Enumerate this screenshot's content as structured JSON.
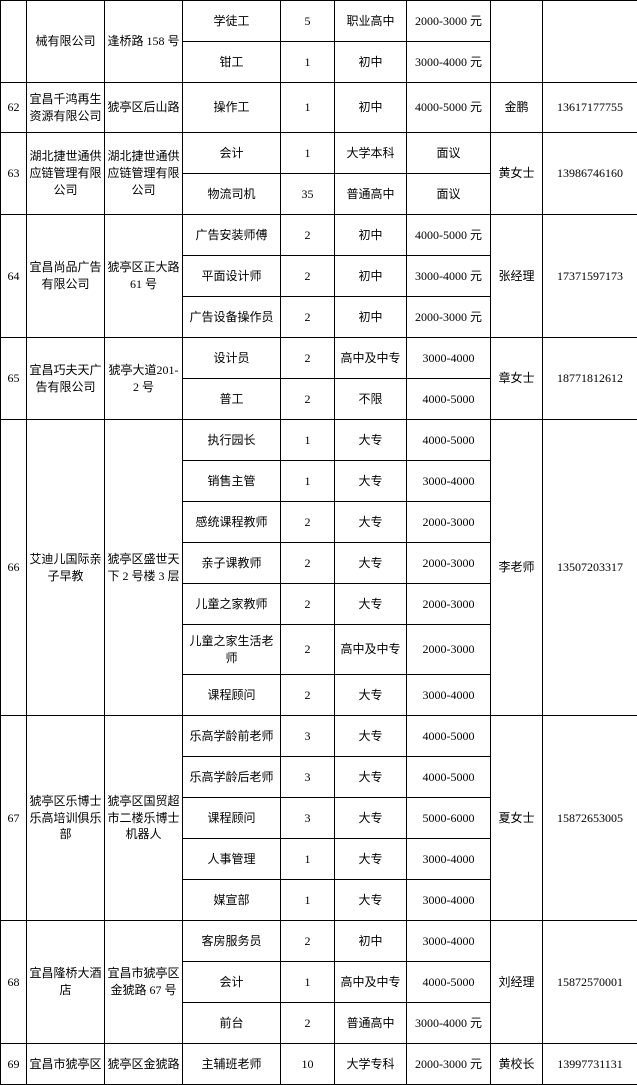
{
  "table": {
    "background_color": "#ffffff",
    "border_color": "#000000",
    "text_color": "#000000",
    "font_size": 12,
    "cells": [
      {
        "r": 0,
        "c": 0,
        "rs": 2,
        "cs": 1,
        "t": "",
        "cls": "h1"
      },
      {
        "r": 0,
        "c": 1,
        "rs": 2,
        "cs": 1,
        "t": "械有限公司",
        "cls": "h1"
      },
      {
        "r": 0,
        "c": 2,
        "rs": 2,
        "cs": 1,
        "t": "逢桥路 158 号",
        "cls": "h1"
      },
      {
        "r": 0,
        "c": 3,
        "t": "学徒工",
        "cls": "h1"
      },
      {
        "r": 0,
        "c": 4,
        "t": "5",
        "cls": "h1"
      },
      {
        "r": 0,
        "c": 5,
        "t": "职业高中",
        "cls": "h1"
      },
      {
        "r": 0,
        "c": 6,
        "t": "2000-3000 元",
        "cls": "h1"
      },
      {
        "r": 0,
        "c": 7,
        "rs": 2,
        "cs": 1,
        "t": "",
        "cls": "h1"
      },
      {
        "r": 0,
        "c": 8,
        "rs": 2,
        "cs": 1,
        "t": "",
        "cls": "h1"
      },
      {
        "r": 1,
        "c": 3,
        "t": "钳工",
        "cls": "h1"
      },
      {
        "r": 1,
        "c": 4,
        "t": "1",
        "cls": "h1"
      },
      {
        "r": 1,
        "c": 5,
        "t": "初中",
        "cls": "h1"
      },
      {
        "r": 1,
        "c": 6,
        "t": "3000-4000 元",
        "cls": "h1"
      },
      {
        "r": 2,
        "c": 0,
        "t": "62",
        "cls": "h2"
      },
      {
        "r": 2,
        "c": 1,
        "t": "宜昌千鸿再生资源有限公司",
        "cls": "h2"
      },
      {
        "r": 2,
        "c": 2,
        "t": "猇亭区后山路",
        "cls": "h2"
      },
      {
        "r": 2,
        "c": 3,
        "t": "操作工",
        "cls": "h2"
      },
      {
        "r": 2,
        "c": 4,
        "t": "1",
        "cls": "h2"
      },
      {
        "r": 2,
        "c": 5,
        "t": "初中",
        "cls": "h2"
      },
      {
        "r": 2,
        "c": 6,
        "t": "4000-5000 元",
        "cls": "h2"
      },
      {
        "r": 2,
        "c": 7,
        "t": "金鹏",
        "cls": "h2"
      },
      {
        "r": 2,
        "c": 8,
        "t": "13617177755",
        "cls": "h2"
      },
      {
        "r": 3,
        "c": 0,
        "rs": 2,
        "cs": 1,
        "t": "63",
        "cls": "h1"
      },
      {
        "r": 3,
        "c": 1,
        "rs": 2,
        "cs": 1,
        "t": "湖北捷世通供应链管理有限公司",
        "cls": "h1"
      },
      {
        "r": 3,
        "c": 2,
        "rs": 2,
        "cs": 1,
        "t": "湖北捷世通供应链管理有限公司",
        "cls": "h1"
      },
      {
        "r": 3,
        "c": 3,
        "t": "会计",
        "cls": "h1"
      },
      {
        "r": 3,
        "c": 4,
        "t": "1",
        "cls": "h1"
      },
      {
        "r": 3,
        "c": 5,
        "t": "大学本科",
        "cls": "h1"
      },
      {
        "r": 3,
        "c": 6,
        "t": "面议",
        "cls": "h1"
      },
      {
        "r": 3,
        "c": 7,
        "rs": 2,
        "cs": 1,
        "t": "黄女士",
        "cls": "h1"
      },
      {
        "r": 3,
        "c": 8,
        "rs": 2,
        "cs": 1,
        "t": "13986746160",
        "cls": "h1"
      },
      {
        "r": 4,
        "c": 3,
        "t": "物流司机",
        "cls": "h1"
      },
      {
        "r": 4,
        "c": 4,
        "t": "35",
        "cls": "h1"
      },
      {
        "r": 4,
        "c": 5,
        "t": "普通高中",
        "cls": "h1"
      },
      {
        "r": 4,
        "c": 6,
        "t": "面议",
        "cls": "h1"
      },
      {
        "r": 5,
        "c": 0,
        "rs": 3,
        "cs": 1,
        "t": "64",
        "cls": "h1"
      },
      {
        "r": 5,
        "c": 1,
        "rs": 3,
        "cs": 1,
        "t": "宜昌尚品广告有限公司",
        "cls": "h1"
      },
      {
        "r": 5,
        "c": 2,
        "rs": 3,
        "cs": 1,
        "t": "猇亭区正大路61 号",
        "cls": "h1"
      },
      {
        "r": 5,
        "c": 3,
        "t": "广告安装师傅",
        "cls": "h1"
      },
      {
        "r": 5,
        "c": 4,
        "t": "2",
        "cls": "h1"
      },
      {
        "r": 5,
        "c": 5,
        "t": "初中",
        "cls": "h1"
      },
      {
        "r": 5,
        "c": 6,
        "t": "4000-5000 元",
        "cls": "h1"
      },
      {
        "r": 5,
        "c": 7,
        "rs": 3,
        "cs": 1,
        "t": "张经理",
        "cls": "h1"
      },
      {
        "r": 5,
        "c": 8,
        "rs": 3,
        "cs": 1,
        "t": "17371597173",
        "cls": "h1"
      },
      {
        "r": 6,
        "c": 3,
        "t": "平面设计师",
        "cls": "h1"
      },
      {
        "r": 6,
        "c": 4,
        "t": "2",
        "cls": "h1"
      },
      {
        "r": 6,
        "c": 5,
        "t": "初中",
        "cls": "h1"
      },
      {
        "r": 6,
        "c": 6,
        "t": "3000-4000 元",
        "cls": "h1"
      },
      {
        "r": 7,
        "c": 3,
        "t": "广告设备操作员",
        "cls": "h1"
      },
      {
        "r": 7,
        "c": 4,
        "t": "2",
        "cls": "h1"
      },
      {
        "r": 7,
        "c": 5,
        "t": "初中",
        "cls": "h1"
      },
      {
        "r": 7,
        "c": 6,
        "t": "2000-3000 元",
        "cls": "h1"
      },
      {
        "r": 8,
        "c": 0,
        "rs": 2,
        "cs": 1,
        "t": "65",
        "cls": "h1"
      },
      {
        "r": 8,
        "c": 1,
        "rs": 2,
        "cs": 1,
        "t": "宜昌巧夫天广告有限公司",
        "cls": "h1"
      },
      {
        "r": 8,
        "c": 2,
        "rs": 2,
        "cs": 1,
        "t": "猇亭大道201-2 号",
        "cls": "h1"
      },
      {
        "r": 8,
        "c": 3,
        "t": "设计员",
        "cls": "h1"
      },
      {
        "r": 8,
        "c": 4,
        "t": "2",
        "cls": "h1"
      },
      {
        "r": 8,
        "c": 5,
        "t": "高中及中专",
        "cls": "h1"
      },
      {
        "r": 8,
        "c": 6,
        "t": "3000-4000",
        "cls": "h1"
      },
      {
        "r": 8,
        "c": 7,
        "rs": 2,
        "cs": 1,
        "t": "章女士",
        "cls": "h1"
      },
      {
        "r": 8,
        "c": 8,
        "rs": 2,
        "cs": 1,
        "t": "18771812612",
        "cls": "h1"
      },
      {
        "r": 9,
        "c": 3,
        "t": "普工",
        "cls": "h1"
      },
      {
        "r": 9,
        "c": 4,
        "t": "2",
        "cls": "h1"
      },
      {
        "r": 9,
        "c": 5,
        "t": "不限",
        "cls": "h1"
      },
      {
        "r": 9,
        "c": 6,
        "t": "4000-5000",
        "cls": "h1"
      },
      {
        "r": 10,
        "c": 0,
        "rs": 7,
        "cs": 1,
        "t": "66",
        "cls": "h1"
      },
      {
        "r": 10,
        "c": 1,
        "rs": 7,
        "cs": 1,
        "t": "艾迪儿国际亲子早教",
        "cls": "h1"
      },
      {
        "r": 10,
        "c": 2,
        "rs": 7,
        "cs": 1,
        "t": "猇亭区盛世天下 2 号楼 3 层",
        "cls": "h1"
      },
      {
        "r": 10,
        "c": 3,
        "t": "执行园长",
        "cls": "h1"
      },
      {
        "r": 10,
        "c": 4,
        "t": "1",
        "cls": "h1"
      },
      {
        "r": 10,
        "c": 5,
        "t": "大专",
        "cls": "h1"
      },
      {
        "r": 10,
        "c": 6,
        "t": "4000-5000",
        "cls": "h1"
      },
      {
        "r": 10,
        "c": 7,
        "rs": 7,
        "cs": 1,
        "t": "李老师",
        "cls": "h1"
      },
      {
        "r": 10,
        "c": 8,
        "rs": 7,
        "cs": 1,
        "t": "13507203317",
        "cls": "h1"
      },
      {
        "r": 11,
        "c": 3,
        "t": "销售主管",
        "cls": "h1"
      },
      {
        "r": 11,
        "c": 4,
        "t": "1",
        "cls": "h1"
      },
      {
        "r": 11,
        "c": 5,
        "t": "大专",
        "cls": "h1"
      },
      {
        "r": 11,
        "c": 6,
        "t": "3000-4000",
        "cls": "h1"
      },
      {
        "r": 12,
        "c": 3,
        "t": "感统课程教师",
        "cls": "h1"
      },
      {
        "r": 12,
        "c": 4,
        "t": "2",
        "cls": "h1"
      },
      {
        "r": 12,
        "c": 5,
        "t": "大专",
        "cls": "h1"
      },
      {
        "r": 12,
        "c": 6,
        "t": "2000-3000",
        "cls": "h1"
      },
      {
        "r": 13,
        "c": 3,
        "t": "亲子课教师",
        "cls": "h1"
      },
      {
        "r": 13,
        "c": 4,
        "t": "2",
        "cls": "h1"
      },
      {
        "r": 13,
        "c": 5,
        "t": "大专",
        "cls": "h1"
      },
      {
        "r": 13,
        "c": 6,
        "t": "2000-3000",
        "cls": "h1"
      },
      {
        "r": 14,
        "c": 3,
        "t": "儿童之家教师",
        "cls": "h1"
      },
      {
        "r": 14,
        "c": 4,
        "t": "2",
        "cls": "h1"
      },
      {
        "r": 14,
        "c": 5,
        "t": "大专",
        "cls": "h1"
      },
      {
        "r": 14,
        "c": 6,
        "t": "2000-3000",
        "cls": "h1"
      },
      {
        "r": 15,
        "c": 3,
        "t": "儿童之家生活老师",
        "cls": "h2"
      },
      {
        "r": 15,
        "c": 4,
        "t": "2",
        "cls": "h2"
      },
      {
        "r": 15,
        "c": 5,
        "t": "高中及中专",
        "cls": "h2"
      },
      {
        "r": 15,
        "c": 6,
        "t": "2000-3000",
        "cls": "h2"
      },
      {
        "r": 16,
        "c": 3,
        "t": "课程顾问",
        "cls": "h1"
      },
      {
        "r": 16,
        "c": 4,
        "t": "2",
        "cls": "h1"
      },
      {
        "r": 16,
        "c": 5,
        "t": "大专",
        "cls": "h1"
      },
      {
        "r": 16,
        "c": 6,
        "t": "3000-4000",
        "cls": "h1"
      },
      {
        "r": 17,
        "c": 0,
        "rs": 5,
        "cs": 1,
        "t": "67",
        "cls": "h1"
      },
      {
        "r": 17,
        "c": 1,
        "rs": 5,
        "cs": 1,
        "t": "猇亭区乐博士乐高培训俱乐部",
        "cls": "h1"
      },
      {
        "r": 17,
        "c": 2,
        "rs": 5,
        "cs": 1,
        "t": "猇亭区国贸超市二楼乐博士机器人",
        "cls": "h1"
      },
      {
        "r": 17,
        "c": 3,
        "t": "乐高学龄前老师",
        "cls": "h1"
      },
      {
        "r": 17,
        "c": 4,
        "t": "3",
        "cls": "h1"
      },
      {
        "r": 17,
        "c": 5,
        "t": "大专",
        "cls": "h1"
      },
      {
        "r": 17,
        "c": 6,
        "t": "4000-5000",
        "cls": "h1"
      },
      {
        "r": 17,
        "c": 7,
        "rs": 5,
        "cs": 1,
        "t": "夏女士",
        "cls": "h1"
      },
      {
        "r": 17,
        "c": 8,
        "rs": 5,
        "cs": 1,
        "t": "15872653005",
        "cls": "h1"
      },
      {
        "r": 18,
        "c": 3,
        "t": "乐高学龄后老师",
        "cls": "h1"
      },
      {
        "r": 18,
        "c": 4,
        "t": "3",
        "cls": "h1"
      },
      {
        "r": 18,
        "c": 5,
        "t": "大专",
        "cls": "h1"
      },
      {
        "r": 18,
        "c": 6,
        "t": "4000-5000",
        "cls": "h1"
      },
      {
        "r": 19,
        "c": 3,
        "t": "课程顾问",
        "cls": "h1"
      },
      {
        "r": 19,
        "c": 4,
        "t": "3",
        "cls": "h1"
      },
      {
        "r": 19,
        "c": 5,
        "t": "大专",
        "cls": "h1"
      },
      {
        "r": 19,
        "c": 6,
        "t": "5000-6000",
        "cls": "h1"
      },
      {
        "r": 20,
        "c": 3,
        "t": "人事管理",
        "cls": "h1"
      },
      {
        "r": 20,
        "c": 4,
        "t": "1",
        "cls": "h1"
      },
      {
        "r": 20,
        "c": 5,
        "t": "大专",
        "cls": "h1"
      },
      {
        "r": 20,
        "c": 6,
        "t": "3000-4000",
        "cls": "h1"
      },
      {
        "r": 21,
        "c": 3,
        "t": "媒宣部",
        "cls": "h1"
      },
      {
        "r": 21,
        "c": 4,
        "t": "1",
        "cls": "h1"
      },
      {
        "r": 21,
        "c": 5,
        "t": "大专",
        "cls": "h1"
      },
      {
        "r": 21,
        "c": 6,
        "t": "3000-4000",
        "cls": "h1"
      },
      {
        "r": 22,
        "c": 0,
        "rs": 3,
        "cs": 1,
        "t": "68",
        "cls": "h1"
      },
      {
        "r": 22,
        "c": 1,
        "rs": 3,
        "cs": 1,
        "t": "宜昌隆桥大酒店",
        "cls": "h1"
      },
      {
        "r": 22,
        "c": 2,
        "rs": 3,
        "cs": 1,
        "t": "宜昌市猇亭区金猇路 67 号",
        "cls": "h1"
      },
      {
        "r": 22,
        "c": 3,
        "t": "客房服务员",
        "cls": "h1"
      },
      {
        "r": 22,
        "c": 4,
        "t": "2",
        "cls": "h1"
      },
      {
        "r": 22,
        "c": 5,
        "t": "初中",
        "cls": "h1"
      },
      {
        "r": 22,
        "c": 6,
        "t": "3000-4000",
        "cls": "h1"
      },
      {
        "r": 22,
        "c": 7,
        "rs": 3,
        "cs": 1,
        "t": "刘经理",
        "cls": "h1"
      },
      {
        "r": 22,
        "c": 8,
        "rs": 3,
        "cs": 1,
        "t": "15872570001",
        "cls": "h1"
      },
      {
        "r": 23,
        "c": 3,
        "t": "会计",
        "cls": "h1"
      },
      {
        "r": 23,
        "c": 4,
        "t": "1",
        "cls": "h1"
      },
      {
        "r": 23,
        "c": 5,
        "t": "高中及中专",
        "cls": "h1"
      },
      {
        "r": 23,
        "c": 6,
        "t": "4000-5000",
        "cls": "h1"
      },
      {
        "r": 24,
        "c": 3,
        "t": "前台",
        "cls": "h1"
      },
      {
        "r": 24,
        "c": 4,
        "t": "2",
        "cls": "h1"
      },
      {
        "r": 24,
        "c": 5,
        "t": "普通高中",
        "cls": "h1"
      },
      {
        "r": 24,
        "c": 6,
        "t": "3000-4000 元",
        "cls": "h1"
      },
      {
        "r": 25,
        "c": 0,
        "t": "69",
        "cls": "h1"
      },
      {
        "r": 25,
        "c": 1,
        "t": "宜昌市猇亭区",
        "cls": "h1"
      },
      {
        "r": 25,
        "c": 2,
        "t": "猇亭区金猇路",
        "cls": "h1"
      },
      {
        "r": 25,
        "c": 3,
        "t": "主辅班老师",
        "cls": "h1"
      },
      {
        "r": 25,
        "c": 4,
        "t": "10",
        "cls": "h1"
      },
      {
        "r": 25,
        "c": 5,
        "t": "大学专科",
        "cls": "h1"
      },
      {
        "r": 25,
        "c": 6,
        "t": "2000-3000 元",
        "cls": "h1"
      },
      {
        "r": 25,
        "c": 7,
        "t": "黄校长",
        "cls": "h1"
      },
      {
        "r": 25,
        "c": 8,
        "t": "13997731131",
        "cls": "h1"
      }
    ],
    "num_rows": 26,
    "num_cols": 9,
    "col_classes": [
      "c0",
      "c1",
      "c2",
      "c3",
      "c4",
      "c5",
      "c6",
      "c7",
      "c8"
    ]
  }
}
